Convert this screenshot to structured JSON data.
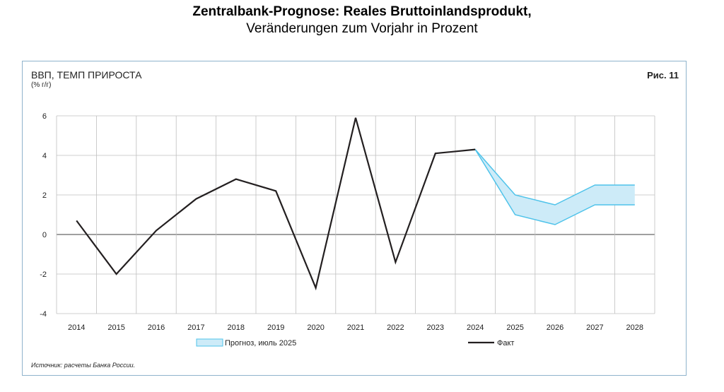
{
  "page": {
    "title": "Zentralbank-Prognose: Reales Bruttoinlandsprodukt,",
    "subtitle": "Veränderungen zum Vorjahr in Prozent"
  },
  "figure": {
    "title": "ВВП, ТЕМП ПРИРОСТА",
    "unit": "(% г/г)",
    "label": "Рис. 11",
    "source": "Источник: расчеты Банка России."
  },
  "colors": {
    "actual_line": "#231f20",
    "forecast_fill": "#cdebf8",
    "forecast_stroke": "#4fc3ea",
    "grid": "#bfbfbf"
  },
  "chart_data": {
    "type": "line",
    "categories": [
      "2014",
      "2015",
      "2016",
      "2017",
      "2018",
      "2019",
      "2020",
      "2021",
      "2022",
      "2023",
      "2024",
      "2025",
      "2026",
      "2027",
      "2028"
    ],
    "ylim": [
      -4,
      6
    ],
    "yticks": [
      "6",
      "4",
      "2",
      "0",
      "-2",
      "-4"
    ],
    "ytick_values": [
      6,
      4,
      2,
      0,
      -2,
      -4
    ],
    "grid": true,
    "legend_position": "bottom",
    "series": [
      {
        "name": "Факт",
        "x": [
          "2014",
          "2015",
          "2016",
          "2017",
          "2018",
          "2019",
          "2020",
          "2021",
          "2022",
          "2023",
          "2024"
        ],
        "values": [
          0.7,
          -2.0,
          0.2,
          1.8,
          2.8,
          2.2,
          -2.7,
          5.9,
          -1.4,
          4.1,
          4.3
        ]
      }
    ],
    "band": {
      "name": "Прогноз, июль 2025",
      "x": [
        "2024",
        "2025",
        "2026",
        "2027",
        "2028"
      ],
      "low": [
        4.3,
        1.0,
        0.5,
        1.5,
        1.5
      ],
      "high": [
        4.3,
        2.0,
        1.5,
        2.5,
        2.5
      ]
    }
  }
}
